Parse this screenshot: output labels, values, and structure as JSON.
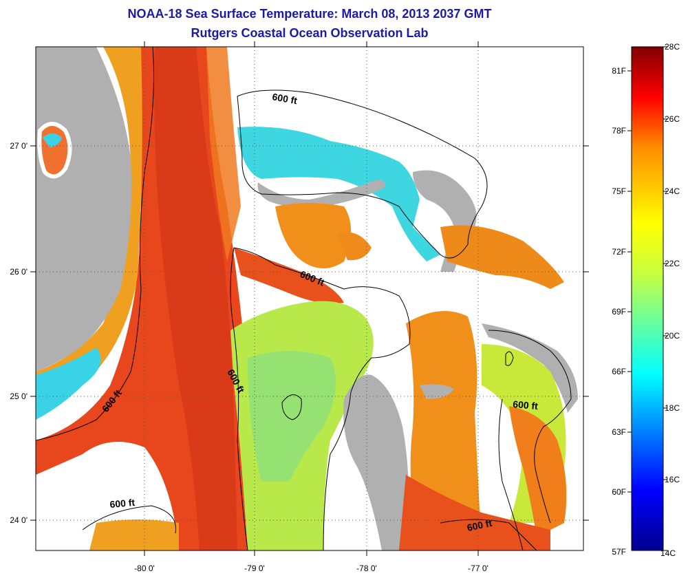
{
  "header": {
    "title": "NOAA-18 Sea Surface Temperature:  March 08, 2013 2037 GMT",
    "subtitle": "Rutgers Coastal Ocean Observation Lab"
  },
  "map": {
    "lon_ticks": [
      "-80 0'",
      "-79 0'",
      "-78 0'",
      "-77 0'"
    ],
    "lat_ticks": [
      "27 0'",
      "26 0'",
      "25 0'",
      "24 0'"
    ],
    "contour_labels": [
      "600 ft",
      "600 ft",
      "600 ft",
      "600 ft",
      "600 ft",
      "600 ft"
    ]
  },
  "colorbar": {
    "fahrenheit_labels": [
      "81F",
      "78F",
      "75F",
      "72F",
      "69F",
      "66F",
      "63F",
      "60F",
      "57F"
    ],
    "celsius_labels": [
      "28C",
      "26C",
      "24C",
      "22C",
      "20C",
      "18C",
      "16C",
      "14C"
    ]
  },
  "colors": {
    "title": "#1a1aa6",
    "land": "#b0b0b0",
    "cloud": "#ffffff",
    "gulf_stream": "#e8401a",
    "warm_orange": "#f0901a",
    "yellow_green": "#c8e83a",
    "cyan": "#3ad2e6"
  }
}
